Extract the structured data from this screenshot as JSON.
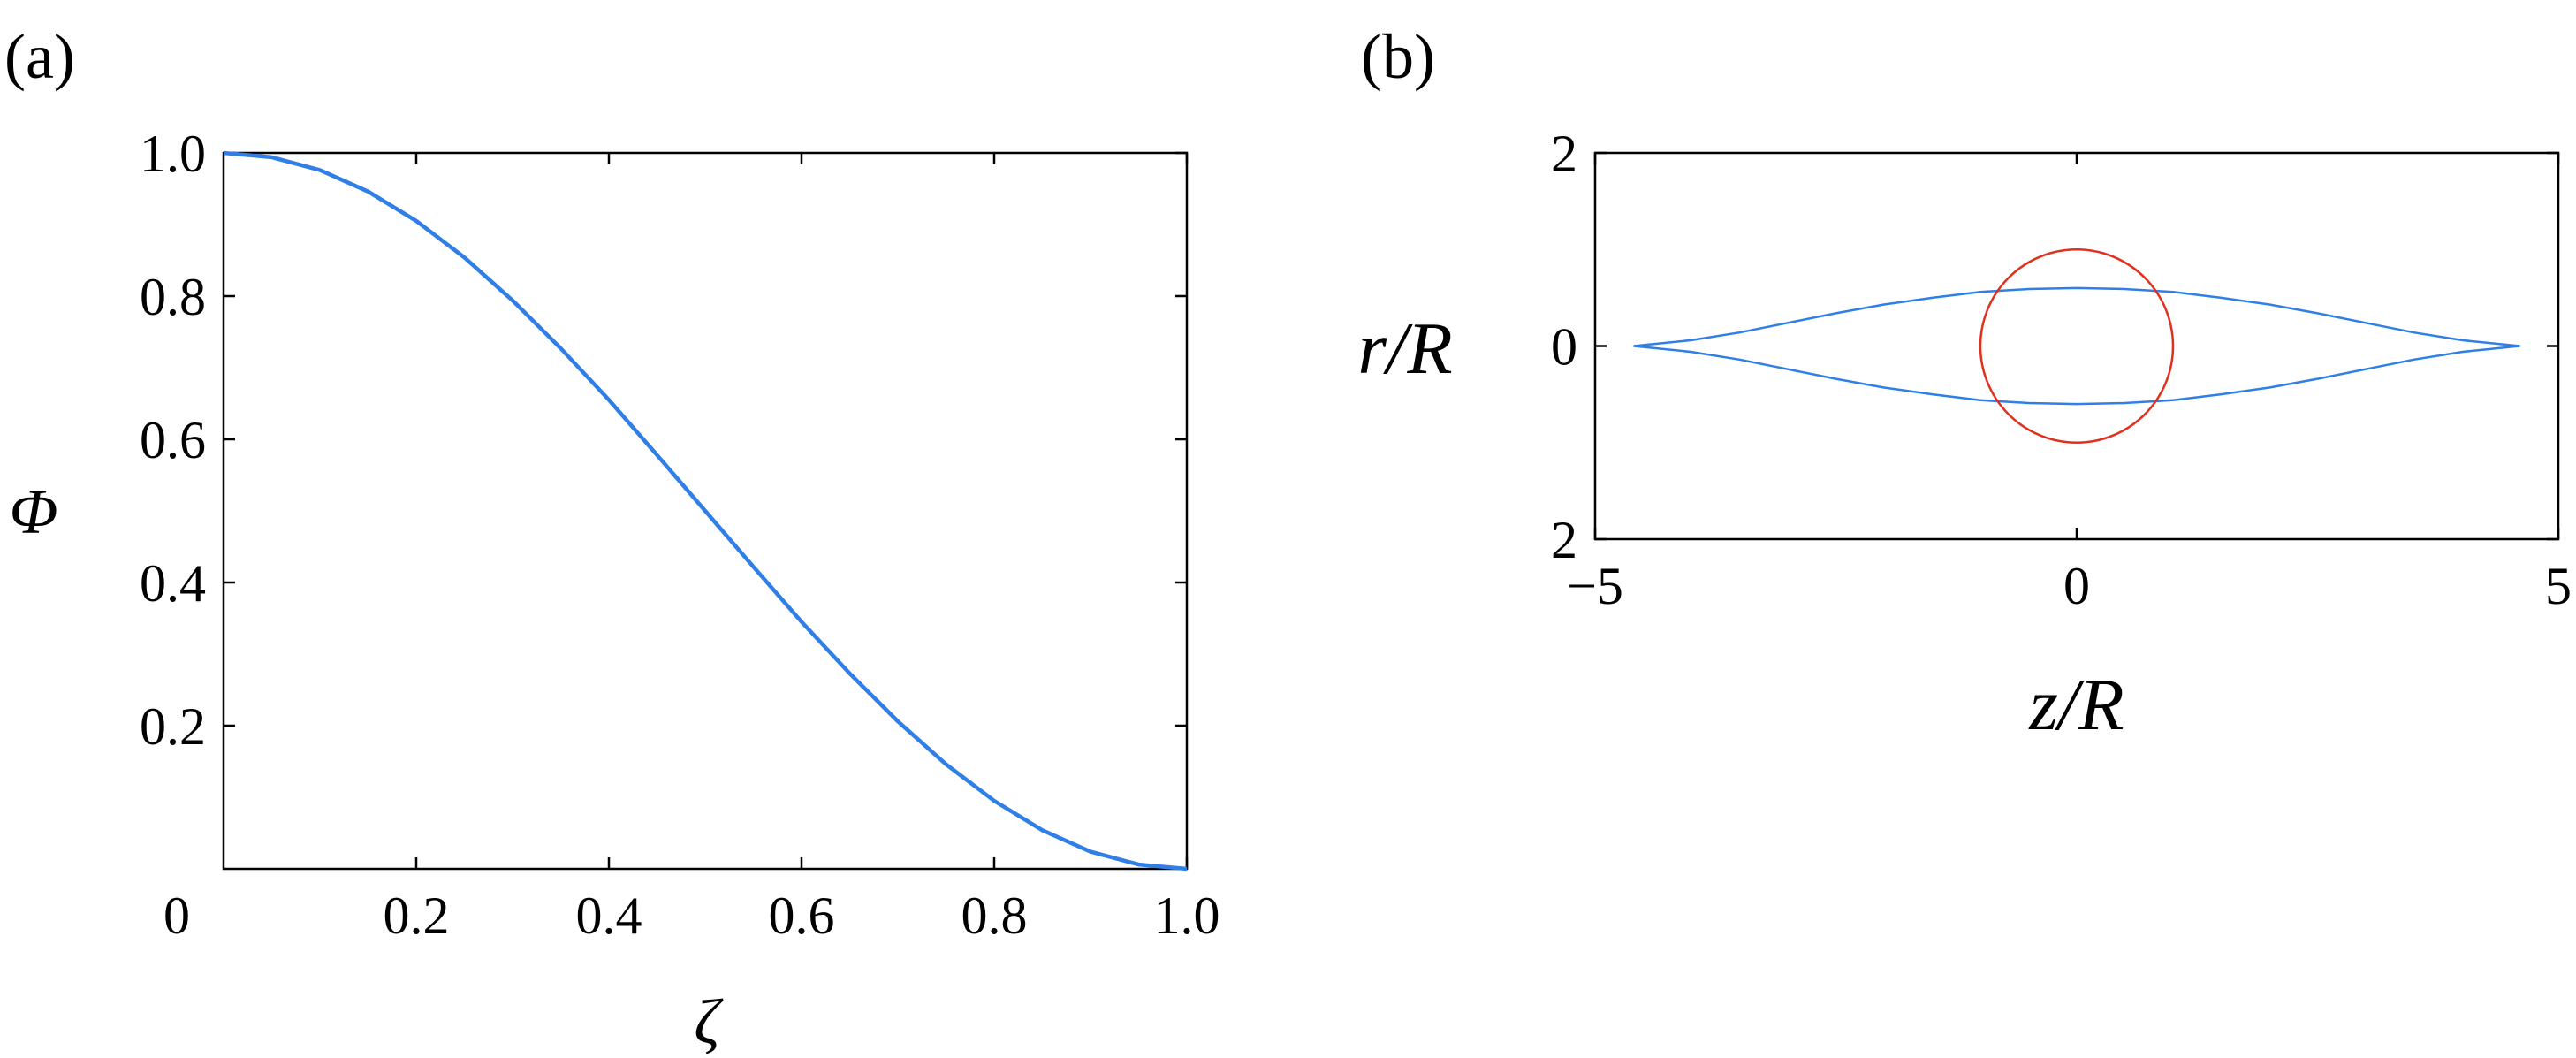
{
  "chart_data": [
    {
      "panel": "(a)",
      "type": "line",
      "xlabel": "ζ",
      "ylabel": "Φ",
      "xlim": [
        0,
        1.0
      ],
      "ylim": [
        0,
        1.0
      ],
      "x_ticks": [
        "0.2",
        "0.4",
        "0.6",
        "0.8",
        "1.0"
      ],
      "y_ticks": [
        "0.2",
        "0.4",
        "0.6",
        "0.8",
        "1.0"
      ],
      "origin_label": "0",
      "grid": false,
      "series": [
        {
          "color": "#2f7fe6",
          "x": [
            0,
            0.05,
            0.1,
            0.15,
            0.2,
            0.25,
            0.3,
            0.35,
            0.4,
            0.45,
            0.5,
            0.55,
            0.6,
            0.65,
            0.7,
            0.75,
            0.8,
            0.85,
            0.9,
            0.95,
            1.0
          ],
          "y": [
            1.0,
            0.994,
            0.976,
            0.946,
            0.905,
            0.854,
            0.794,
            0.727,
            0.655,
            0.578,
            0.5,
            0.422,
            0.345,
            0.273,
            0.206,
            0.146,
            0.095,
            0.054,
            0.024,
            0.006,
            0.0
          ]
        }
      ]
    },
    {
      "panel": "(b)",
      "type": "line",
      "xlabel": "z/R",
      "ylabel": "r/R",
      "xlim": [
        -5,
        5
      ],
      "ylim": [
        -2,
        2
      ],
      "x_ticks": [
        "−5",
        "0",
        "5"
      ],
      "y_ticks": [
        "2",
        "0",
        "2"
      ],
      "grid": false,
      "series": [
        {
          "color": "#2f7fe6",
          "x": [
            -4.6,
            -4.0,
            -3.5,
            -3.0,
            -2.5,
            -2.0,
            -1.5,
            -1.0,
            -0.5,
            0,
            0.5,
            1.0,
            1.5,
            2.0,
            2.5,
            3.0,
            3.5,
            4.0,
            4.6
          ],
          "y": [
            0.0,
            0.06,
            0.14,
            0.24,
            0.34,
            0.43,
            0.5,
            0.56,
            0.59,
            0.6,
            0.59,
            0.56,
            0.5,
            0.43,
            0.34,
            0.24,
            0.14,
            0.06,
            0.0
          ]
        },
        {
          "color": "#2f7fe6",
          "x": [
            -4.6,
            -4.0,
            -3.5,
            -3.0,
            -2.5,
            -2.0,
            -1.5,
            -1.0,
            -0.5,
            0,
            0.5,
            1.0,
            1.5,
            2.0,
            2.5,
            3.0,
            3.5,
            4.0,
            4.6
          ],
          "y": [
            0.0,
            -0.06,
            -0.14,
            -0.24,
            -0.34,
            -0.43,
            -0.5,
            -0.56,
            -0.59,
            -0.6,
            -0.59,
            -0.56,
            -0.5,
            -0.43,
            -0.34,
            -0.24,
            -0.14,
            -0.06,
            0.0
          ]
        },
        {
          "type": "circle",
          "color": "#e0301e",
          "center": [
            0,
            0
          ],
          "radius": 1.0
        }
      ]
    }
  ]
}
